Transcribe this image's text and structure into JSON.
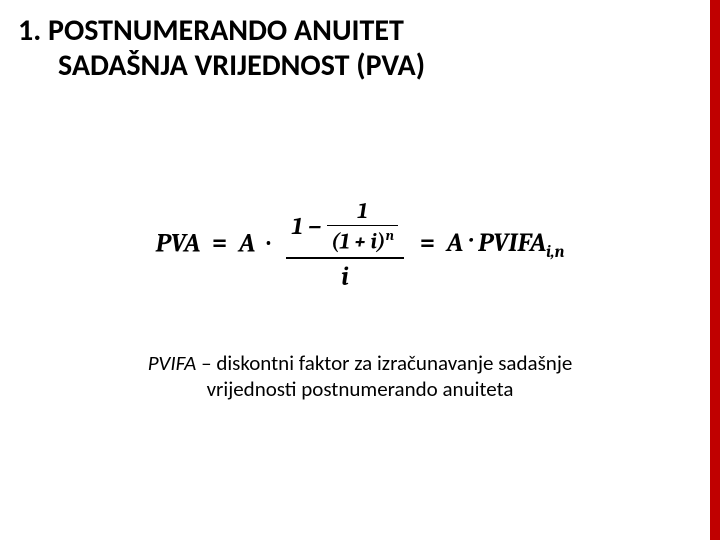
{
  "title": {
    "line1": "1. POSTNUMERANDO ANUITET",
    "line2": "SADAŠNJA VRIJEDNOST (PVA)",
    "fontSize": 30,
    "fontWeight": 700,
    "color": "#000000"
  },
  "accentBarColor": "#c00000",
  "backgroundColor": "#ffffff",
  "formula": {
    "lhs": "PVA",
    "eq": "=",
    "A": "A",
    "dot": "·",
    "innerOne": "1",
    "innerBase": "(1 + i)",
    "innerExp": "n",
    "topLeft": "1 −",
    "denom": "i",
    "rhs_prefix": "A · PVIFA",
    "rhs_sub": "i,n",
    "fontSize": 26,
    "color": "#000000"
  },
  "caption": {
    "term": "PVIFA",
    "dash": " – ",
    "text1": "diskontni faktor za izračunavanje sadašnje",
    "text2": "vrijednosti postnumerando anuiteta",
    "fontSize": 21,
    "color": "#000000"
  }
}
